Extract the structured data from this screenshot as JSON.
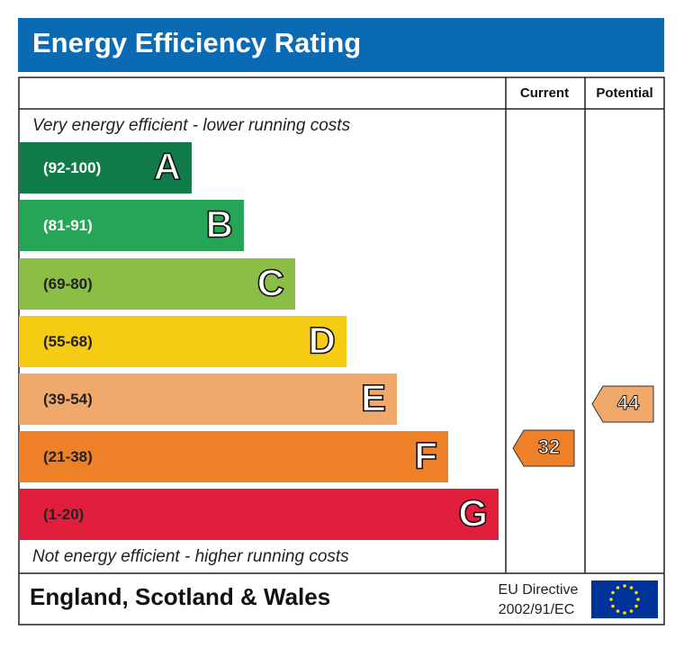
{
  "title": "Energy Efficiency Rating",
  "columns": {
    "current": "Current",
    "potential": "Potential"
  },
  "top_note": "Very energy efficient - lower running costs",
  "bottom_note": "Not energy efficient - higher running costs",
  "bands": [
    {
      "range": "(92-100)",
      "letter": "A",
      "color": "#117c4a"
    },
    {
      "range": "(81-91)",
      "letter": "B",
      "color": "#25a555"
    },
    {
      "range": "(69-80)",
      "letter": "C",
      "color": "#8cbd45"
    },
    {
      "range": "(55-68)",
      "letter": "D",
      "color": "#f5cb14"
    },
    {
      "range": "(39-54)",
      "letter": "E",
      "color": "#f1a96b"
    },
    {
      "range": "(21-38)",
      "letter": "F",
      "color": "#ee8027"
    },
    {
      "range": "(1-20)",
      "letter": "G",
      "color": "#e11f3c"
    }
  ],
  "current": "32",
  "potential": "44",
  "footer": {
    "region": "England, Scotland & Wales",
    "directive_line1": "EU Directive",
    "directive_line2": "2002/91/EC"
  }
}
